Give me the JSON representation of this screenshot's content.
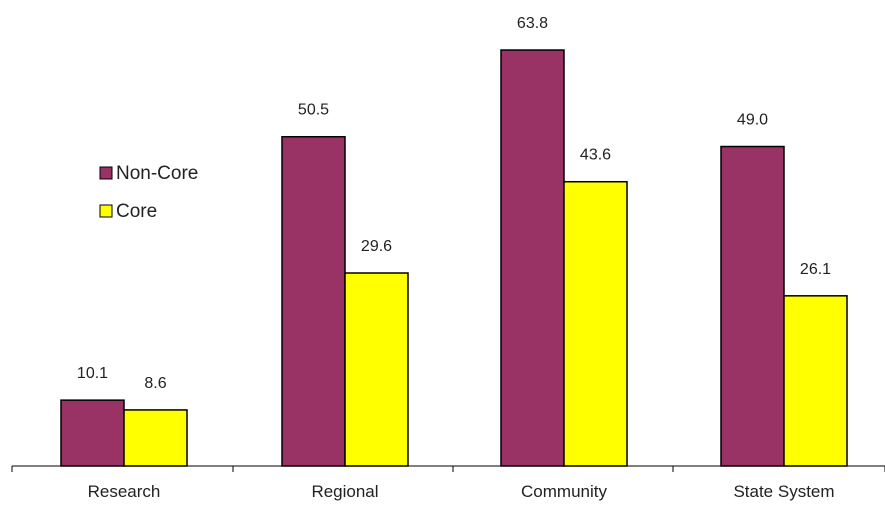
{
  "chart_data": {
    "type": "bar",
    "categories": [
      "Research",
      "Regional",
      "Community",
      "State System"
    ],
    "series": [
      {
        "name": "Non-Core",
        "color": "#993366",
        "values": [
          10.1,
          50.5,
          63.8,
          49.0
        ],
        "labels": [
          "10.1",
          "50.5",
          "63.8",
          "49.0"
        ]
      },
      {
        "name": "Core",
        "color": "#ffff00",
        "values": [
          8.6,
          29.6,
          43.6,
          26.1
        ],
        "labels": [
          "8.6",
          "29.6",
          "43.6",
          "26.1"
        ]
      }
    ],
    "title": "",
    "xlabel": "",
    "ylabel": "",
    "ylim": [
      0,
      70
    ],
    "grid": false,
    "legend": "left",
    "data_labels": true
  }
}
